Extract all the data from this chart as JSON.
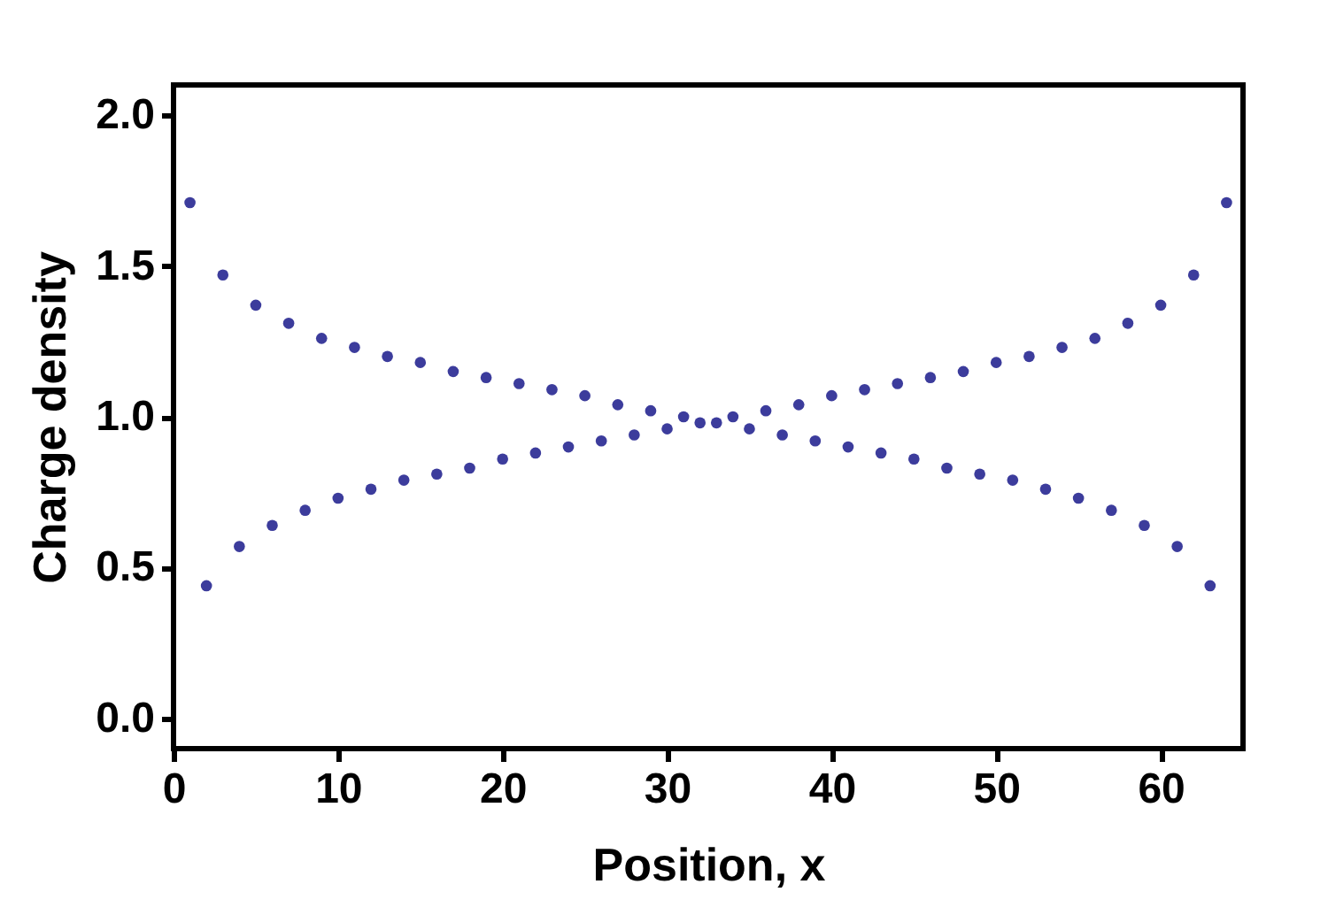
{
  "chart_data": {
    "type": "scatter",
    "xlabel": "Position, x",
    "ylabel": "Charge density",
    "x": [
      1,
      2,
      3,
      4,
      5,
      6,
      7,
      8,
      9,
      10,
      11,
      12,
      13,
      14,
      15,
      16,
      17,
      18,
      19,
      20,
      21,
      22,
      23,
      24,
      25,
      26,
      27,
      28,
      29,
      30,
      31,
      32,
      33,
      34,
      35,
      36,
      37,
      38,
      39,
      40,
      41,
      42,
      43,
      44,
      45,
      46,
      47,
      48,
      49,
      50,
      51,
      52,
      53,
      54,
      55,
      56,
      57,
      58,
      59,
      60,
      61,
      62,
      63,
      64
    ],
    "series": [
      {
        "color": "#3c3c9c",
        "values": [
          1.71,
          0.44,
          1.47,
          0.57,
          1.37,
          0.64,
          1.31,
          0.69,
          1.26,
          0.73,
          1.23,
          0.76,
          1.2,
          0.79,
          1.18,
          0.81,
          1.15,
          0.83,
          1.13,
          0.86,
          1.11,
          0.88,
          1.09,
          0.9,
          1.07,
          0.92,
          1.04,
          0.94,
          1.02,
          0.96,
          1.0,
          0.98,
          0.98,
          1.0,
          0.96,
          1.02,
          0.94,
          1.04,
          0.92,
          1.07,
          0.9,
          1.09,
          0.88,
          1.11,
          0.86,
          1.13,
          0.83,
          1.15,
          0.81,
          1.18,
          0.79,
          1.2,
          0.76,
          1.23,
          0.73,
          1.26,
          0.69,
          1.31,
          0.64,
          1.37,
          0.57,
          1.47,
          0.44,
          1.71
        ]
      }
    ],
    "xlim": [
      0,
      65
    ],
    "xticks": [
      0,
      10,
      20,
      30,
      40,
      50,
      60
    ],
    "ylim": [
      -0.1,
      2.1
    ],
    "yticks": [
      {
        "value": 0,
        "label": "0.0"
      },
      0.5,
      {
        "value": 1,
        "label": "1.0"
      },
      1.5,
      {
        "value": 2,
        "label": "2.0"
      }
    ],
    "marker": "circle",
    "grid": false,
    "legend": false
  }
}
